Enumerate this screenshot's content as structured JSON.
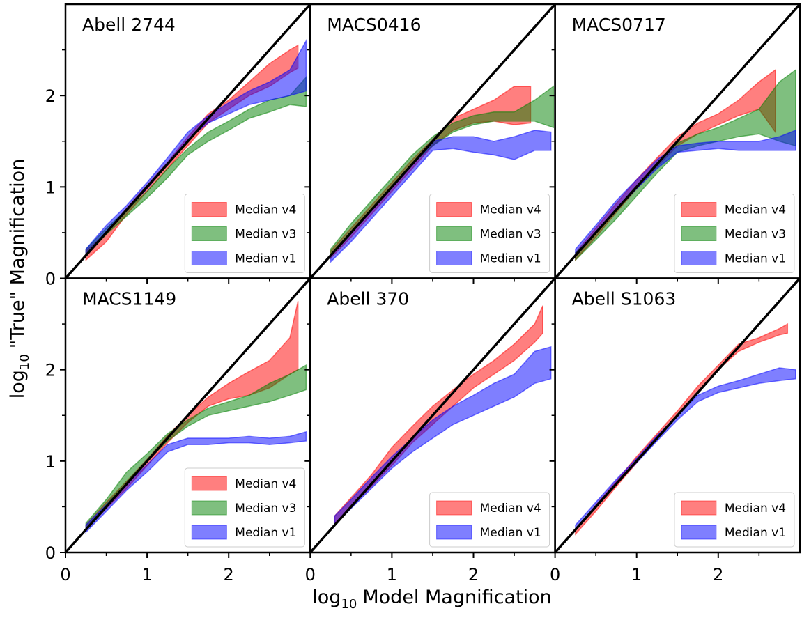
{
  "figure": {
    "xlabel": [
      "log",
      "10",
      "Model Magnification"
    ],
    "ylabel": [
      "log",
      "10",
      "\"True\" Magnification"
    ]
  },
  "chart_data": [
    {
      "type": "range-area",
      "title": "Abell 2744",
      "xlim": [
        0,
        3
      ],
      "ylim": [
        0,
        3
      ],
      "xticks": [
        0,
        1,
        2
      ],
      "yticks": [
        0,
        1,
        2
      ],
      "xminorticks": [
        0.5,
        1.5,
        2.5
      ],
      "yminorticks": [
        0.5,
        1.5,
        2.5
      ],
      "diagonal": true,
      "legend": "lower right",
      "series": [
        {
          "name": "Median v4",
          "color": "#ff0000",
          "x": [
            0.25,
            0.5,
            0.75,
            1.0,
            1.25,
            1.5,
            1.75,
            2.0,
            2.25,
            2.5,
            2.75,
            2.85
          ],
          "low": [
            0.2,
            0.4,
            0.7,
            0.95,
            1.2,
            1.45,
            1.7,
            1.85,
            2.0,
            2.1,
            2.25,
            2.3
          ],
          "high": [
            0.3,
            0.5,
            0.77,
            1.02,
            1.27,
            1.55,
            1.8,
            1.95,
            2.15,
            2.35,
            2.5,
            2.55
          ]
        },
        {
          "name": "Median v3",
          "color": "#008000",
          "x": [
            0.25,
            0.5,
            0.75,
            1.0,
            1.25,
            1.5,
            1.75,
            2.0,
            2.25,
            2.5,
            2.75,
            2.95
          ],
          "low": [
            0.25,
            0.48,
            0.68,
            0.88,
            1.1,
            1.35,
            1.5,
            1.62,
            1.75,
            1.82,
            1.9,
            1.88
          ],
          "high": [
            0.32,
            0.55,
            0.75,
            0.95,
            1.2,
            1.42,
            1.6,
            1.72,
            1.85,
            1.95,
            2.0,
            2.2
          ]
        },
        {
          "name": "Median v1",
          "color": "#0000ff",
          "x": [
            0.25,
            0.5,
            0.75,
            1.0,
            1.25,
            1.5,
            1.75,
            2.0,
            2.25,
            2.5,
            2.75,
            2.95
          ],
          "low": [
            0.25,
            0.5,
            0.75,
            0.98,
            1.25,
            1.52,
            1.7,
            1.8,
            1.9,
            1.95,
            2.0,
            2.05
          ],
          "high": [
            0.32,
            0.58,
            0.8,
            1.05,
            1.32,
            1.6,
            1.78,
            1.92,
            2.05,
            2.15,
            2.28,
            2.6
          ]
        }
      ]
    },
    {
      "type": "range-area",
      "title": "MACS0416",
      "xlim": [
        0,
        3
      ],
      "ylim": [
        0,
        3
      ],
      "xticks": [
        0,
        1,
        2
      ],
      "yticks": [
        0,
        1,
        2
      ],
      "xminorticks": [
        0.5,
        1.5,
        2.5
      ],
      "yminorticks": [
        0.5,
        1.5,
        2.5
      ],
      "diagonal": true,
      "legend": "lower right",
      "series": [
        {
          "name": "Median v4",
          "color": "#ff0000",
          "x": [
            0.25,
            0.5,
            0.75,
            1.0,
            1.25,
            1.5,
            1.75,
            2.0,
            2.25,
            2.5,
            2.7
          ],
          "low": [
            0.22,
            0.45,
            0.7,
            0.95,
            1.2,
            1.45,
            1.62,
            1.7,
            1.72,
            1.68,
            1.7
          ],
          "high": [
            0.3,
            0.55,
            0.8,
            1.05,
            1.3,
            1.52,
            1.75,
            1.85,
            1.95,
            2.1,
            2.1
          ]
        },
        {
          "name": "Median v3",
          "color": "#008000",
          "x": [
            0.25,
            0.5,
            0.75,
            1.0,
            1.25,
            1.5,
            1.75,
            2.0,
            2.25,
            2.5,
            2.75,
            2.98
          ],
          "low": [
            0.25,
            0.5,
            0.75,
            1.0,
            1.25,
            1.45,
            1.6,
            1.68,
            1.72,
            1.72,
            1.72,
            1.65
          ],
          "high": [
            0.32,
            0.6,
            0.85,
            1.1,
            1.35,
            1.55,
            1.7,
            1.78,
            1.82,
            1.82,
            1.95,
            2.1
          ]
        },
        {
          "name": "Median v1",
          "color": "#0000ff",
          "x": [
            0.25,
            0.5,
            0.75,
            1.0,
            1.25,
            1.5,
            1.75,
            2.0,
            2.25,
            2.5,
            2.75,
            2.95
          ],
          "low": [
            0.18,
            0.4,
            0.65,
            0.9,
            1.15,
            1.4,
            1.42,
            1.38,
            1.35,
            1.3,
            1.4,
            1.4
          ],
          "high": [
            0.25,
            0.5,
            0.75,
            1.0,
            1.25,
            1.5,
            1.55,
            1.55,
            1.5,
            1.55,
            1.62,
            1.6
          ]
        }
      ]
    },
    {
      "type": "range-area",
      "title": "MACS0717",
      "xlim": [
        0,
        3
      ],
      "ylim": [
        0,
        3
      ],
      "xticks": [
        0,
        1,
        2
      ],
      "yticks": [
        0,
        1,
        2
      ],
      "xminorticks": [
        0.5,
        1.5,
        2.5
      ],
      "yminorticks": [
        0.5,
        1.5,
        2.5
      ],
      "diagonal": true,
      "legend": "lower right",
      "series": [
        {
          "name": "Median v4",
          "color": "#ff0000",
          "x": [
            0.25,
            0.5,
            0.75,
            1.0,
            1.25,
            1.5,
            1.75,
            2.0,
            2.25,
            2.5,
            2.7
          ],
          "low": [
            0.2,
            0.45,
            0.72,
            0.98,
            1.22,
            1.45,
            1.58,
            1.68,
            1.78,
            1.85,
            1.6
          ],
          "high": [
            0.28,
            0.55,
            0.82,
            1.08,
            1.32,
            1.55,
            1.7,
            1.8,
            1.95,
            2.15,
            2.28
          ]
        },
        {
          "name": "Median v3",
          "color": "#008000",
          "x": [
            0.25,
            0.5,
            0.75,
            1.0,
            1.25,
            1.5,
            1.75,
            2.0,
            2.25,
            2.5,
            2.75,
            2.95
          ],
          "low": [
            0.2,
            0.42,
            0.65,
            0.9,
            1.15,
            1.38,
            1.45,
            1.5,
            1.55,
            1.58,
            1.5,
            1.45
          ],
          "high": [
            0.28,
            0.5,
            0.75,
            1.0,
            1.25,
            1.48,
            1.58,
            1.65,
            1.75,
            1.85,
            2.15,
            2.28
          ]
        },
        {
          "name": "Median v1",
          "color": "#0000ff",
          "x": [
            0.25,
            0.5,
            0.75,
            1.0,
            1.25,
            1.5,
            1.75,
            2.0,
            2.25,
            2.5,
            2.75,
            2.95
          ],
          "low": [
            0.25,
            0.5,
            0.75,
            0.98,
            1.2,
            1.38,
            1.4,
            1.42,
            1.4,
            1.4,
            1.4,
            1.4
          ],
          "high": [
            0.32,
            0.58,
            0.85,
            1.08,
            1.3,
            1.45,
            1.48,
            1.5,
            1.5,
            1.5,
            1.55,
            1.62
          ]
        }
      ]
    },
    {
      "type": "range-area",
      "title": "MACS1149",
      "xlim": [
        0,
        3
      ],
      "ylim": [
        0,
        3
      ],
      "xticks": [
        0,
        1,
        2
      ],
      "yticks": [
        0,
        1,
        2
      ],
      "xminorticks": [
        0.5,
        1.5,
        2.5
      ],
      "yminorticks": [
        0.5,
        1.5,
        2.5
      ],
      "diagonal": true,
      "legend": "lower right",
      "series": [
        {
          "name": "Median v4",
          "color": "#ff0000",
          "x": [
            0.25,
            0.5,
            0.75,
            1.0,
            1.25,
            1.5,
            1.75,
            2.0,
            2.25,
            2.5,
            2.75,
            2.85
          ],
          "low": [
            0.25,
            0.48,
            0.7,
            0.95,
            1.2,
            1.42,
            1.6,
            1.68,
            1.72,
            1.8,
            1.95,
            2.0
          ],
          "high": [
            0.3,
            0.55,
            0.78,
            1.02,
            1.28,
            1.5,
            1.7,
            1.85,
            1.98,
            2.1,
            2.35,
            2.75
          ]
        },
        {
          "name": "Median v3",
          "color": "#008000",
          "x": [
            0.25,
            0.5,
            0.75,
            1.0,
            1.25,
            1.5,
            1.75,
            2.0,
            2.25,
            2.5,
            2.75,
            2.95
          ],
          "low": [
            0.25,
            0.52,
            0.78,
            1.0,
            1.22,
            1.38,
            1.5,
            1.55,
            1.6,
            1.65,
            1.72,
            1.78
          ],
          "high": [
            0.32,
            0.58,
            0.88,
            1.08,
            1.3,
            1.45,
            1.58,
            1.65,
            1.72,
            1.85,
            1.95,
            2.05
          ]
        },
        {
          "name": "Median v1",
          "color": "#0000ff",
          "x": [
            0.25,
            0.5,
            0.75,
            1.0,
            1.25,
            1.5,
            1.75,
            2.0,
            2.25,
            2.5,
            2.75,
            2.95
          ],
          "low": [
            0.22,
            0.45,
            0.68,
            0.88,
            1.1,
            1.18,
            1.18,
            1.2,
            1.2,
            1.18,
            1.2,
            1.22
          ],
          "high": [
            0.3,
            0.52,
            0.75,
            0.96,
            1.18,
            1.25,
            1.25,
            1.25,
            1.27,
            1.25,
            1.27,
            1.32
          ]
        }
      ]
    },
    {
      "type": "range-area",
      "title": "Abell 370",
      "xlim": [
        0,
        3
      ],
      "ylim": [
        0,
        3
      ],
      "xticks": [
        0,
        1,
        2
      ],
      "yticks": [
        0,
        1,
        2
      ],
      "xminorticks": [
        0.5,
        1.5,
        2.5
      ],
      "yminorticks": [
        0.5,
        1.5,
        2.5
      ],
      "diagonal": true,
      "legend": "lower right",
      "series": [
        {
          "name": "Median v4",
          "color": "#ff0000",
          "x": [
            0.3,
            0.5,
            0.75,
            1.0,
            1.25,
            1.5,
            1.75,
            2.0,
            2.25,
            2.5,
            2.75,
            2.85
          ],
          "low": [
            0.32,
            0.5,
            0.72,
            0.95,
            1.2,
            1.4,
            1.6,
            1.8,
            1.95,
            2.1,
            2.3,
            2.4
          ],
          "high": [
            0.4,
            0.6,
            0.85,
            1.15,
            1.38,
            1.6,
            1.78,
            1.95,
            2.1,
            2.28,
            2.5,
            2.7
          ]
        },
        {
          "name": "Median v1",
          "color": "#0000ff",
          "x": [
            0.3,
            0.5,
            0.75,
            1.0,
            1.25,
            1.5,
            1.75,
            2.0,
            2.25,
            2.5,
            2.75,
            2.95
          ],
          "low": [
            0.3,
            0.48,
            0.7,
            0.92,
            1.1,
            1.25,
            1.4,
            1.5,
            1.6,
            1.7,
            1.85,
            1.9
          ],
          "high": [
            0.4,
            0.58,
            0.82,
            1.05,
            1.25,
            1.45,
            1.6,
            1.72,
            1.85,
            1.95,
            2.2,
            2.25
          ]
        }
      ]
    },
    {
      "type": "range-area",
      "title": "Abell S1063",
      "xlim": [
        0,
        3
      ],
      "ylim": [
        0,
        3
      ],
      "xticks": [
        0,
        1,
        2
      ],
      "yticks": [
        0,
        1,
        2
      ],
      "xminorticks": [
        0.5,
        1.5,
        2.5
      ],
      "yminorticks": [
        0.5,
        1.5,
        2.5
      ],
      "diagonal": true,
      "legend": "lower right",
      "series": [
        {
          "name": "Median v4",
          "color": "#ff0000",
          "x": [
            0.25,
            0.5,
            0.75,
            1.0,
            1.25,
            1.5,
            1.75,
            2.0,
            2.25,
            2.5,
            2.75,
            2.85
          ],
          "low": [
            0.2,
            0.45,
            0.72,
            0.98,
            1.25,
            1.5,
            1.75,
            2.0,
            2.2,
            2.3,
            2.38,
            2.4
          ],
          "high": [
            0.25,
            0.52,
            0.78,
            1.05,
            1.3,
            1.55,
            1.82,
            2.05,
            2.28,
            2.35,
            2.45,
            2.5
          ]
        },
        {
          "name": "Median v1",
          "color": "#0000ff",
          "x": [
            0.25,
            0.5,
            0.75,
            1.0,
            1.25,
            1.5,
            1.75,
            2.0,
            2.25,
            2.5,
            2.75,
            2.95
          ],
          "low": [
            0.25,
            0.5,
            0.75,
            0.98,
            1.22,
            1.45,
            1.65,
            1.75,
            1.8,
            1.85,
            1.88,
            1.9
          ],
          "high": [
            0.3,
            0.55,
            0.8,
            1.03,
            1.28,
            1.5,
            1.72,
            1.82,
            1.88,
            1.95,
            2.02,
            2.0
          ]
        }
      ]
    }
  ]
}
